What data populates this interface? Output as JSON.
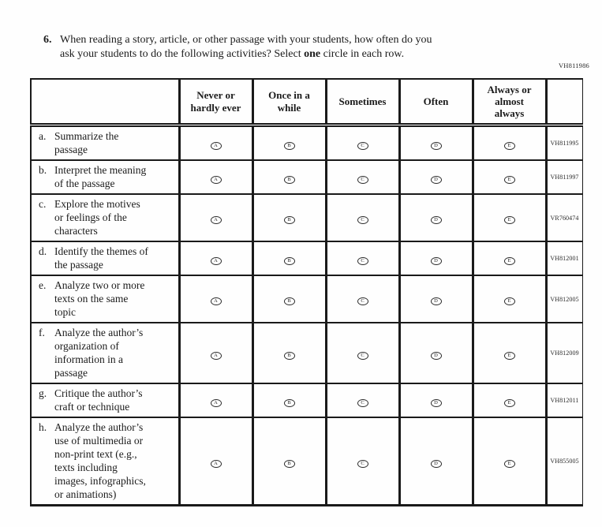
{
  "page": {
    "top_right_code": "VH811986"
  },
  "question": {
    "number": "6.",
    "line1": "When reading a story, article, or other passage with your students, how often do you",
    "line2_pre": "ask your students to do the following activities? Select ",
    "line2_bold": "one",
    "line2_post": " circle in each row."
  },
  "table": {
    "options": [
      "A",
      "B",
      "C",
      "D",
      "E"
    ],
    "columns": [
      {
        "label": "Never or hardly ever",
        "lines": [
          "Never or",
          "hardly ever"
        ]
      },
      {
        "label": "Once in a while",
        "lines": [
          "Once in a",
          "while"
        ]
      },
      {
        "label": "Sometimes",
        "lines": [
          "Sometimes"
        ]
      },
      {
        "label": "Often",
        "lines": [
          "Often"
        ]
      },
      {
        "label": "Always or almost always",
        "lines": [
          "Always or",
          "almost",
          "always"
        ]
      }
    ],
    "rows": [
      {
        "letter": "a.",
        "label": "Summarize the passage",
        "lines": [
          "Summarize the",
          "passage"
        ],
        "code": "VH811995"
      },
      {
        "letter": "b.",
        "label": "Interpret the meaning of the passage",
        "lines": [
          "Interpret the meaning",
          "of the passage"
        ],
        "code": "VH811997"
      },
      {
        "letter": "c.",
        "label": "Explore the motives or feelings of the characters",
        "lines": [
          "Explore the motives",
          "or feelings of the",
          "characters"
        ],
        "code": "VR760474"
      },
      {
        "letter": "d.",
        "label": "Identify the themes of the passage",
        "lines": [
          "Identify the themes of",
          "the passage"
        ],
        "code": "VH812001"
      },
      {
        "letter": "e.",
        "label": "Analyze two or more texts on the same topic",
        "lines": [
          "Analyze two or more",
          "texts on the same",
          "topic"
        ],
        "code": "VH812005"
      },
      {
        "letter": "f.",
        "label": "Analyze the author’s organization of information in a passage",
        "lines": [
          "Analyze the author’s",
          "organization of",
          "information in a",
          "passage"
        ],
        "code": "VH812009"
      },
      {
        "letter": "g.",
        "label": "Critique the author’s craft or technique",
        "lines": [
          "Critique the author’s",
          "craft or technique"
        ],
        "code": "VH812011"
      },
      {
        "letter": "h.",
        "label": "Analyze the author’s use of multimedia or non-print text (e.g., texts including images, infographics, or animations)",
        "lines": [
          "Analyze the author’s",
          "use of multimedia or",
          "non-print text (e.g.,",
          "texts including",
          "images, infographics,",
          "or animations)"
        ],
        "code": "VH855005"
      }
    ]
  }
}
